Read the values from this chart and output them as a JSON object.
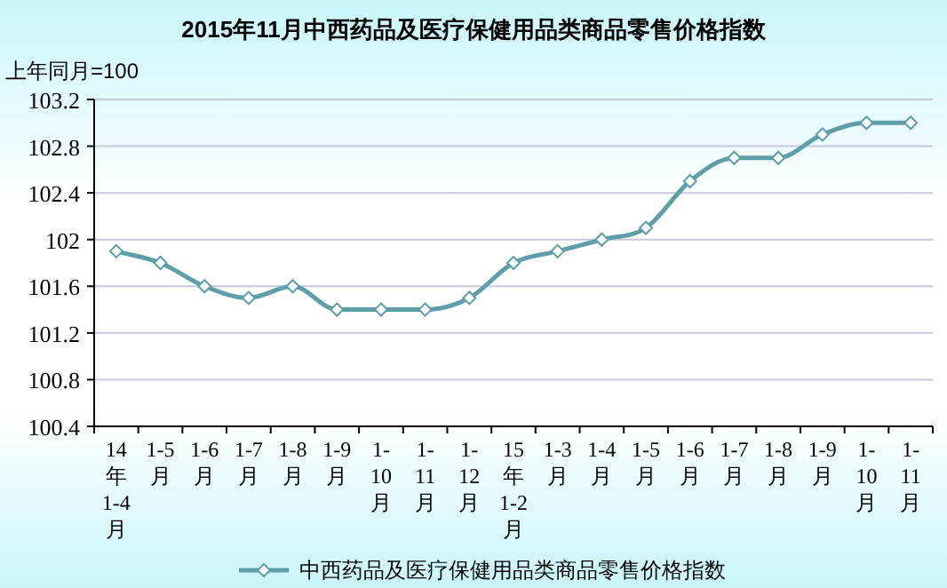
{
  "chart_data": {
    "type": "line",
    "title": "2015年11月中西药品及医疗保健用品类商品零售价格指数",
    "ylabel": "上年同月=100",
    "categories": [
      "14年1-4月",
      "1-5月",
      "1-6月",
      "1-7月",
      "1-8月",
      "1-9月",
      "1-10月",
      "1-11月",
      "1-12月",
      "15年1-2月",
      "1-3月",
      "1-4月",
      "1-5月",
      "1-6月",
      "1-7月",
      "1-8月",
      "1-9月",
      "1-10月",
      "1-11月"
    ],
    "series": [
      {
        "name": "中西药品及医疗保健用品类商品零售价格指数",
        "color": "#5e9ea8",
        "values": [
          101.9,
          101.8,
          101.6,
          101.5,
          101.6,
          101.4,
          101.4,
          101.4,
          101.5,
          101.8,
          101.9,
          102.0,
          102.1,
          102.5,
          102.7,
          102.7,
          102.9,
          103.0,
          103.0
        ]
      }
    ],
    "ylim": [
      100.4,
      103.2
    ],
    "yticks": [
      100.4,
      100.8,
      101.2,
      101.6,
      102,
      102.4,
      102.8,
      103.2
    ],
    "grid": "y",
    "legend": "bottom",
    "marker": "diamond",
    "line_style": "solid"
  }
}
